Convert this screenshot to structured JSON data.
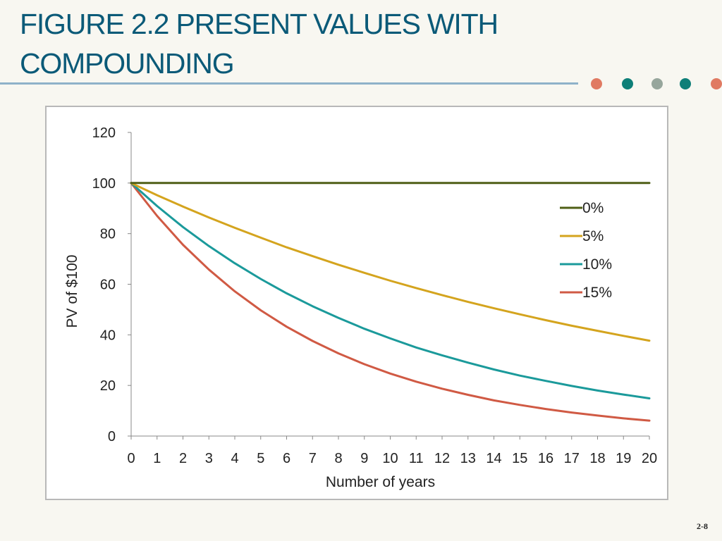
{
  "slide": {
    "title": "FIGURE 2.2 PRESENT VALUES WITH COMPOUNDING",
    "page_number": "2-8",
    "rule_color": "#8fb2c9",
    "title_color": "#0b5a78",
    "decorative_dots": [
      {
        "color": "#e07a62"
      },
      {
        "color": "#0e7f78"
      },
      {
        "color": "#97a69c"
      },
      {
        "color": "#0e7f78"
      },
      {
        "color": "#e07a62"
      }
    ]
  },
  "chart_data": {
    "type": "line",
    "xlabel": "Number of years",
    "ylabel": "PV of $100",
    "xlim": [
      0,
      20
    ],
    "ylim": [
      0,
      120
    ],
    "x_ticks": [
      0,
      1,
      2,
      3,
      4,
      5,
      6,
      7,
      8,
      9,
      10,
      11,
      12,
      13,
      14,
      15,
      16,
      17,
      18,
      19,
      20
    ],
    "y_ticks": [
      0,
      20,
      40,
      60,
      80,
      100,
      120
    ],
    "grid": false,
    "legend_position": "right",
    "x": [
      0,
      1,
      2,
      3,
      4,
      5,
      6,
      7,
      8,
      9,
      10,
      11,
      12,
      13,
      14,
      15,
      16,
      17,
      18,
      19,
      20
    ],
    "series": [
      {
        "name": "0%",
        "color": "#4f5f16",
        "values": [
          100,
          100,
          100,
          100,
          100,
          100,
          100,
          100,
          100,
          100,
          100,
          100,
          100,
          100,
          100,
          100,
          100,
          100,
          100,
          100,
          100
        ]
      },
      {
        "name": "5%",
        "color": "#d4a41e",
        "values": [
          100,
          95.2,
          90.7,
          86.4,
          82.3,
          78.4,
          74.6,
          71.1,
          67.7,
          64.5,
          61.4,
          58.5,
          55.7,
          53.0,
          50.5,
          48.1,
          45.8,
          43.6,
          41.6,
          39.6,
          37.7
        ]
      },
      {
        "name": "10%",
        "color": "#1b9a9b",
        "values": [
          100,
          90.9,
          82.6,
          75.1,
          68.3,
          62.1,
          56.4,
          51.3,
          46.7,
          42.4,
          38.6,
          35.0,
          31.9,
          29.0,
          26.3,
          23.9,
          21.8,
          19.8,
          18.0,
          16.4,
          14.9
        ]
      },
      {
        "name": "15%",
        "color": "#d05a44",
        "values": [
          100,
          87.0,
          75.6,
          65.8,
          57.2,
          49.7,
          43.2,
          37.6,
          32.7,
          28.4,
          24.7,
          21.5,
          18.7,
          16.3,
          14.1,
          12.3,
          10.7,
          9.3,
          8.1,
          7.0,
          6.1
        ]
      }
    ]
  }
}
